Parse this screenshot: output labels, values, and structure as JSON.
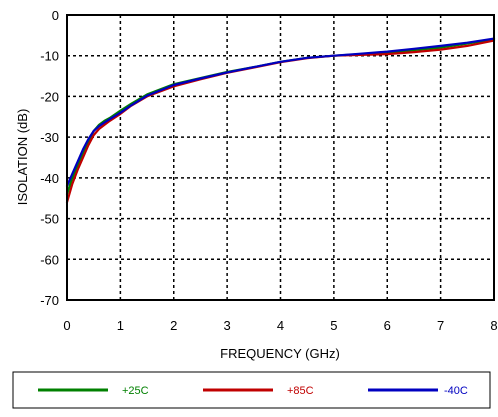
{
  "chart_data": {
    "type": "line",
    "title": "",
    "xlabel": "FREQUENCY (GHz)",
    "ylabel": "ISOLATION (dB)",
    "xlim": [
      0,
      8
    ],
    "ylim": [
      -70,
      0
    ],
    "xticks": [
      0,
      1,
      2,
      3,
      4,
      5,
      6,
      7,
      8
    ],
    "yticks": [
      0,
      -10,
      -20,
      -30,
      -40,
      -50,
      -60,
      -70
    ],
    "grid": true,
    "legend_position": "bottom",
    "series": [
      {
        "name": "+25C",
        "color": "#008000",
        "x": [
          0,
          0.1,
          0.2,
          0.3,
          0.4,
          0.5,
          0.6,
          0.7,
          0.8,
          1.0,
          1.2,
          1.5,
          2.0,
          2.5,
          3.0,
          3.5,
          4.0,
          4.5,
          5.0,
          5.5,
          6.0,
          6.5,
          7.0,
          7.5,
          8.0
        ],
        "y": [
          -44,
          -40,
          -37,
          -34,
          -31,
          -28.5,
          -27,
          -26,
          -25.3,
          -23.5,
          -21.8,
          -19.5,
          -17,
          -15.5,
          -14,
          -12.8,
          -11.5,
          -10.5,
          -10,
          -9.6,
          -9.2,
          -8.6,
          -8,
          -7,
          -6
        ]
      },
      {
        "name": "+85C",
        "color": "#c00000",
        "x": [
          0,
          0.1,
          0.2,
          0.3,
          0.4,
          0.5,
          0.6,
          0.7,
          0.8,
          1.0,
          1.2,
          1.5,
          2.0,
          2.5,
          3.0,
          3.5,
          4.0,
          4.5,
          5.0,
          5.5,
          6.0,
          6.5,
          7.0,
          7.5,
          8.0
        ],
        "y": [
          -46,
          -41.5,
          -38,
          -35,
          -32,
          -29.5,
          -28,
          -27,
          -26,
          -24.3,
          -22.3,
          -20,
          -17.5,
          -15.8,
          -14.2,
          -12.9,
          -11.6,
          -10.6,
          -10,
          -9.8,
          -9.6,
          -9.1,
          -8.5,
          -7.6,
          -6.3
        ]
      },
      {
        "name": "-40C",
        "color": "#0000c0",
        "x": [
          0,
          0.1,
          0.2,
          0.3,
          0.4,
          0.5,
          0.6,
          0.7,
          0.8,
          1.0,
          1.2,
          1.5,
          2.0,
          2.5,
          3.0,
          3.5,
          4.0,
          4.5,
          5.0,
          5.5,
          6.0,
          6.5,
          7.0,
          7.5,
          8.0
        ],
        "y": [
          -42,
          -39,
          -36,
          -33,
          -30.5,
          -28.5,
          -27.3,
          -26.4,
          -25.6,
          -24,
          -22.2,
          -19.8,
          -17.2,
          -15.6,
          -14.1,
          -12.8,
          -11.5,
          -10.5,
          -10,
          -9.5,
          -9,
          -8.3,
          -7.6,
          -6.8,
          -5.8
        ]
      }
    ]
  }
}
